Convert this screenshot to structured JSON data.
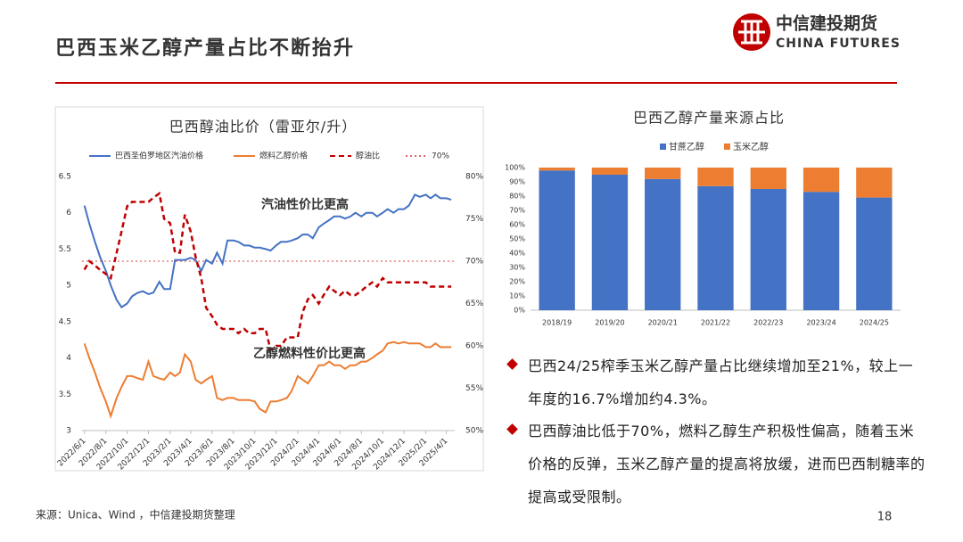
{
  "slide": {
    "title": "巴西玉米乙醇产量占比不断抬升",
    "logo_cn": "中信建投期货",
    "logo_en": "CHINA FUTURES",
    "bullets": [
      "巴西24/25榨季玉米乙醇产量占比继续增加至21%，较上一年度的16.7%增加约4.3%。",
      "巴西醇油比低于70%，燃料乙醇生产积极性偏高，随着玉米价格的反弹，玉米乙醇产量的提高将放缓，进而巴西制糖率的提高或受限制。"
    ],
    "source": "来源：Unica、Wind ，中信建投期货整理",
    "page": "18"
  },
  "chart_data": [
    {
      "type": "line",
      "title": "巴西醇油比价（雷亚尔/升）",
      "x": [
        "2022/6/1",
        "2022/6/15",
        "2022/7/1",
        "2022/7/15",
        "2022/8/1",
        "2022/8/15",
        "2022/9/1",
        "2022/9/15",
        "2022/10/1",
        "2022/10/15",
        "2022/11/1",
        "2022/11/15",
        "2022/12/1",
        "2022/12/15",
        "2023/1/1",
        "2023/1/15",
        "2023/2/1",
        "2023/2/15",
        "2023/3/1",
        "2023/3/15",
        "2023/4/1",
        "2023/4/15",
        "2023/5/1",
        "2023/5/15",
        "2023/6/1",
        "2023/6/15",
        "2023/7/1",
        "2023/7/15",
        "2023/8/1",
        "2023/8/15",
        "2023/9/1",
        "2023/9/15",
        "2023/10/1",
        "2023/10/15",
        "2023/11/1",
        "2023/11/15",
        "2023/12/1",
        "2023/12/15",
        "2024/1/1",
        "2024/1/15",
        "2024/2/1",
        "2024/2/15",
        "2024/3/1",
        "2024/3/15",
        "2024/4/1",
        "2024/4/15",
        "2024/5/1",
        "2024/5/15",
        "2024/6/1",
        "2024/6/15",
        "2024/7/1",
        "2024/7/15",
        "2024/8/1",
        "2024/8/15",
        "2024/9/1",
        "2024/9/15",
        "2024/10/1",
        "2024/10/15",
        "2024/11/1",
        "2024/11/15",
        "2024/12/1",
        "2024/12/15",
        "2025/1/1",
        "2025/1/15",
        "2025/2/1",
        "2025/2/15",
        "2025/3/1",
        "2025/3/15",
        "2025/4/1",
        "2025/4/15"
      ],
      "xlim": [
        "2022/5/25",
        "2025/4/25"
      ],
      "xticks": [
        "2022/6/1",
        "2022/8/1",
        "2022/10/1",
        "2022/12/1",
        "2023/2/1",
        "2023/4/1",
        "2023/6/1",
        "2023/8/1",
        "2023/10/1",
        "2023/12/1",
        "2024/2/1",
        "2024/4/1",
        "2024/6/1",
        "2024/8/1",
        "2024/10/1",
        "2024/12/1",
        "2025/2/1",
        "2025/4/1"
      ],
      "ylim": [
        3,
        6.5
      ],
      "yticks": [
        3,
        3.5,
        4,
        4.5,
        5,
        5.5,
        6,
        6.5
      ],
      "y2lim": [
        50,
        80
      ],
      "y2ticks": [
        {
          "value": 50,
          "label": "50%"
        },
        {
          "value": 55,
          "label": "55%"
        },
        {
          "value": 60,
          "label": "60%"
        },
        {
          "value": 65,
          "label": "65%"
        },
        {
          "value": 70,
          "label": "70%"
        },
        {
          "value": 75,
          "label": "75%"
        },
        {
          "value": 80,
          "label": "80%"
        }
      ],
      "series": [
        {
          "name": "巴西圣伯罗地区汽油价格",
          "color": "#4472c4",
          "style": "solid",
          "values": [
            6.1,
            5.85,
            5.6,
            5.4,
            5.2,
            5.0,
            4.8,
            4.7,
            4.75,
            4.85,
            4.9,
            4.92,
            4.88,
            4.9,
            5.05,
            4.95,
            4.95,
            5.35,
            5.35,
            5.35,
            5.38,
            5.35,
            5.2,
            5.35,
            5.3,
            5.45,
            5.3,
            5.62,
            5.62,
            5.6,
            5.55,
            5.55,
            5.52,
            5.52,
            5.5,
            5.48,
            5.55,
            5.6,
            5.6,
            5.62,
            5.65,
            5.7,
            5.7,
            5.65,
            5.8,
            5.85,
            5.9,
            5.95,
            5.95,
            5.92,
            5.95,
            6.0,
            5.95,
            6.0,
            6.0,
            5.95,
            6.0,
            6.05,
            6.0,
            6.05,
            6.05,
            6.1,
            6.25,
            6.22,
            6.25,
            6.2,
            6.25,
            6.2,
            6.2,
            6.18
          ]
        },
        {
          "name": "燃料乙醇价格",
          "color": "#ed7d31",
          "style": "solid",
          "values": [
            4.2,
            4.0,
            3.8,
            3.6,
            3.4,
            3.2,
            3.45,
            3.6,
            3.75,
            3.75,
            3.72,
            3.7,
            3.95,
            3.75,
            3.72,
            3.7,
            3.8,
            3.75,
            3.8,
            4.05,
            3.95,
            3.7,
            3.65,
            3.7,
            3.75,
            3.45,
            3.42,
            3.45,
            3.45,
            3.42,
            3.42,
            3.42,
            3.4,
            3.3,
            3.25,
            3.4,
            3.4,
            3.42,
            3.45,
            3.55,
            3.75,
            3.7,
            3.65,
            3.75,
            3.9,
            3.9,
            3.95,
            3.9,
            3.9,
            3.85,
            3.9,
            3.9,
            3.95,
            3.95,
            4.0,
            4.05,
            4.1,
            4.2,
            4.22,
            4.2,
            4.22,
            4.2,
            4.2,
            4.2,
            4.15,
            4.15,
            4.2,
            4.15,
            4.15,
            4.15
          ]
        },
        {
          "name": "醇油比",
          "color": "#c00000",
          "style": "dashed",
          "axis": "y2",
          "values": [
            69,
            70,
            69.5,
            69,
            68.5,
            68,
            71,
            73.5,
            76.5,
            77,
            77,
            77,
            77,
            77.5,
            78,
            75,
            74.5,
            71,
            71,
            75.5,
            73.5,
            70.5,
            68,
            64.5,
            63.5,
            62.5,
            62,
            62,
            62,
            61.5,
            62,
            61.5,
            61.5,
            62,
            62,
            59.5,
            60,
            60,
            61,
            61,
            61,
            64,
            65.5,
            66,
            65,
            66,
            67,
            66.5,
            66,
            66.5,
            66,
            66,
            66.5,
            67,
            67.5,
            67,
            68,
            67.5,
            67.5,
            67.5,
            67.5,
            67.5,
            67.5,
            67.5,
            67.5,
            67,
            67,
            67,
            67,
            67
          ]
        }
      ],
      "reference_line": {
        "name": "70%",
        "value": 70,
        "axis": "y2",
        "color": "#e06666",
        "style": "dotted"
      },
      "annotations": [
        "汽油性价比更高",
        "乙醇燃料性价比更高"
      ]
    },
    {
      "type": "stacked_bar",
      "title": "巴西乙醇产量来源占比",
      "categories": [
        "2018/19",
        "2019/20",
        "2020/21",
        "2021/22",
        "2022/23",
        "2023/24",
        "2024/25"
      ],
      "ylim": [
        0,
        100
      ],
      "yticks": [
        {
          "value": 0,
          "label": "0%"
        },
        {
          "value": 10,
          "label": "10%"
        },
        {
          "value": 20,
          "label": "20%"
        },
        {
          "value": 30,
          "label": "30%"
        },
        {
          "value": 40,
          "label": "40%"
        },
        {
          "value": 50,
          "label": "50%"
        },
        {
          "value": 60,
          "label": "60%"
        },
        {
          "value": 70,
          "label": "70%"
        },
        {
          "value": 80,
          "label": "80%"
        },
        {
          "value": 90,
          "label": "90%"
        },
        {
          "value": 100,
          "label": "100%"
        }
      ],
      "series": [
        {
          "name": "甘蔗乙醇",
          "color": "#4472c4",
          "values": [
            98,
            95,
            92,
            87,
            85,
            83,
            79
          ]
        },
        {
          "name": "玉米乙醇",
          "color": "#ed7d31",
          "values": [
            2,
            5,
            8,
            13,
            15,
            17,
            21
          ]
        }
      ]
    }
  ]
}
